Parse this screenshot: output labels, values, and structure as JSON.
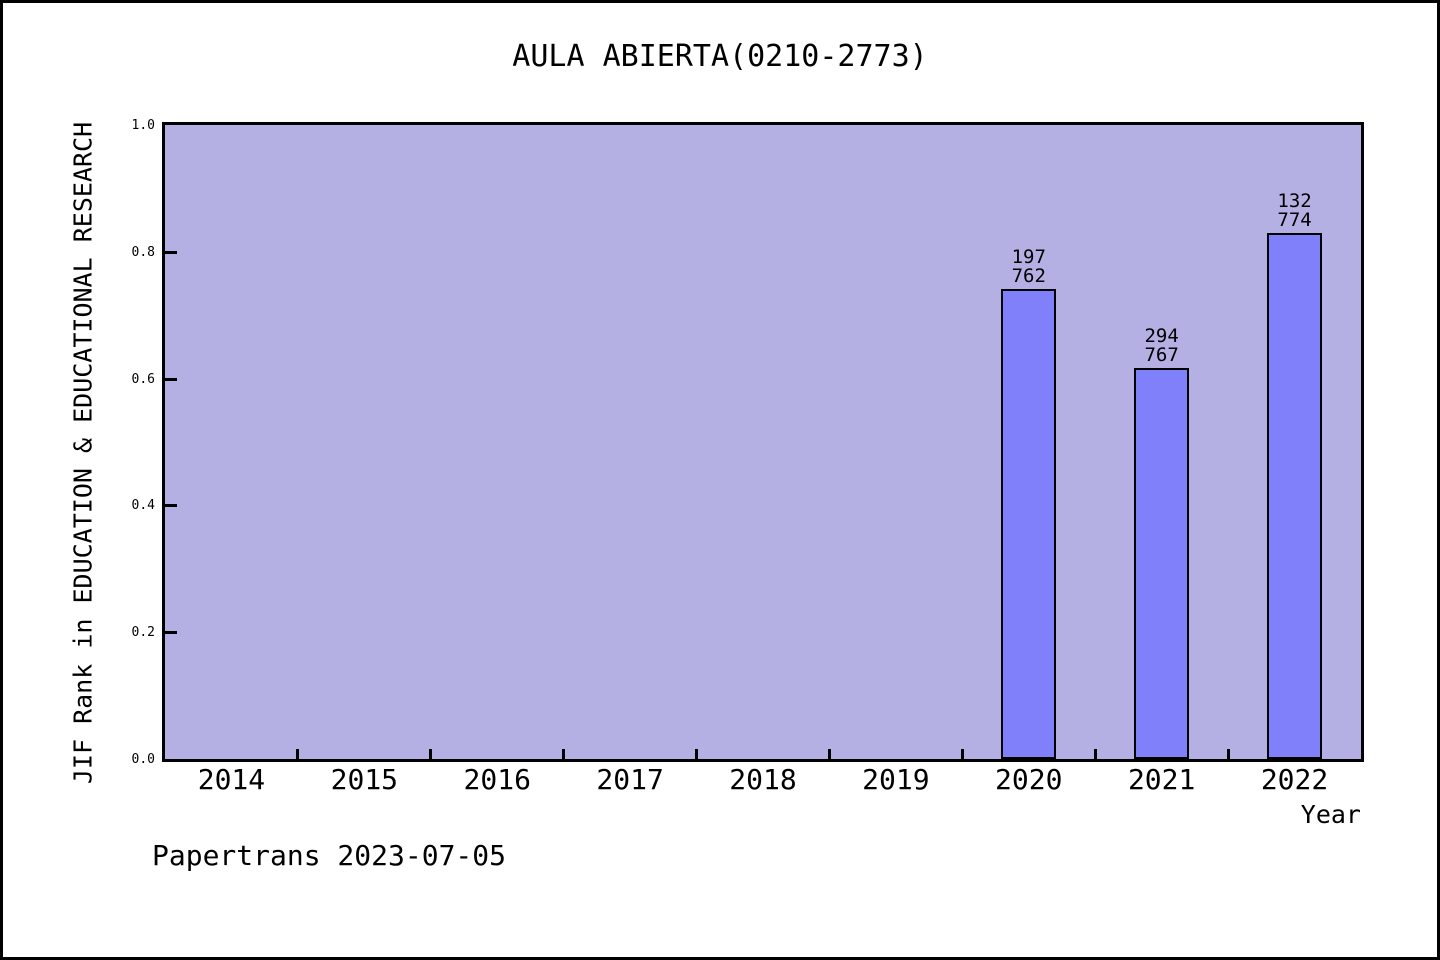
{
  "chart_data": {
    "type": "bar",
    "title": "AULA ABIERTA(0210-2773)",
    "xlabel": "Year",
    "ylabel": "JIF Rank in EDUCATION & EDUCATIONAL RESEARCH",
    "categories": [
      "2014",
      "2015",
      "2016",
      "2017",
      "2018",
      "2019",
      "2020",
      "2021",
      "2022"
    ],
    "series": [
      {
        "name": "JIF Rank",
        "points": [
          {
            "category": "2020",
            "value": 0.7415,
            "rank": "197",
            "total": "762"
          },
          {
            "category": "2021",
            "value": 0.6167,
            "rank": "294",
            "total": "767"
          },
          {
            "category": "2022",
            "value": 0.8295,
            "rank": "132",
            "total": "774"
          }
        ]
      }
    ],
    "ylim": [
      0.0,
      1.0
    ],
    "yticks": [
      "0.0",
      "0.2",
      "0.4",
      "0.6",
      "0.8",
      "1.0"
    ],
    "grid": false,
    "legend": false,
    "annotation": "Papertrans 2023-07-05",
    "colors": {
      "plot_bg": "#b5b0e3",
      "bar_fill": "#8080fa",
      "bar_edge": "#000000",
      "axis": "#000000",
      "text": "#000000"
    }
  }
}
